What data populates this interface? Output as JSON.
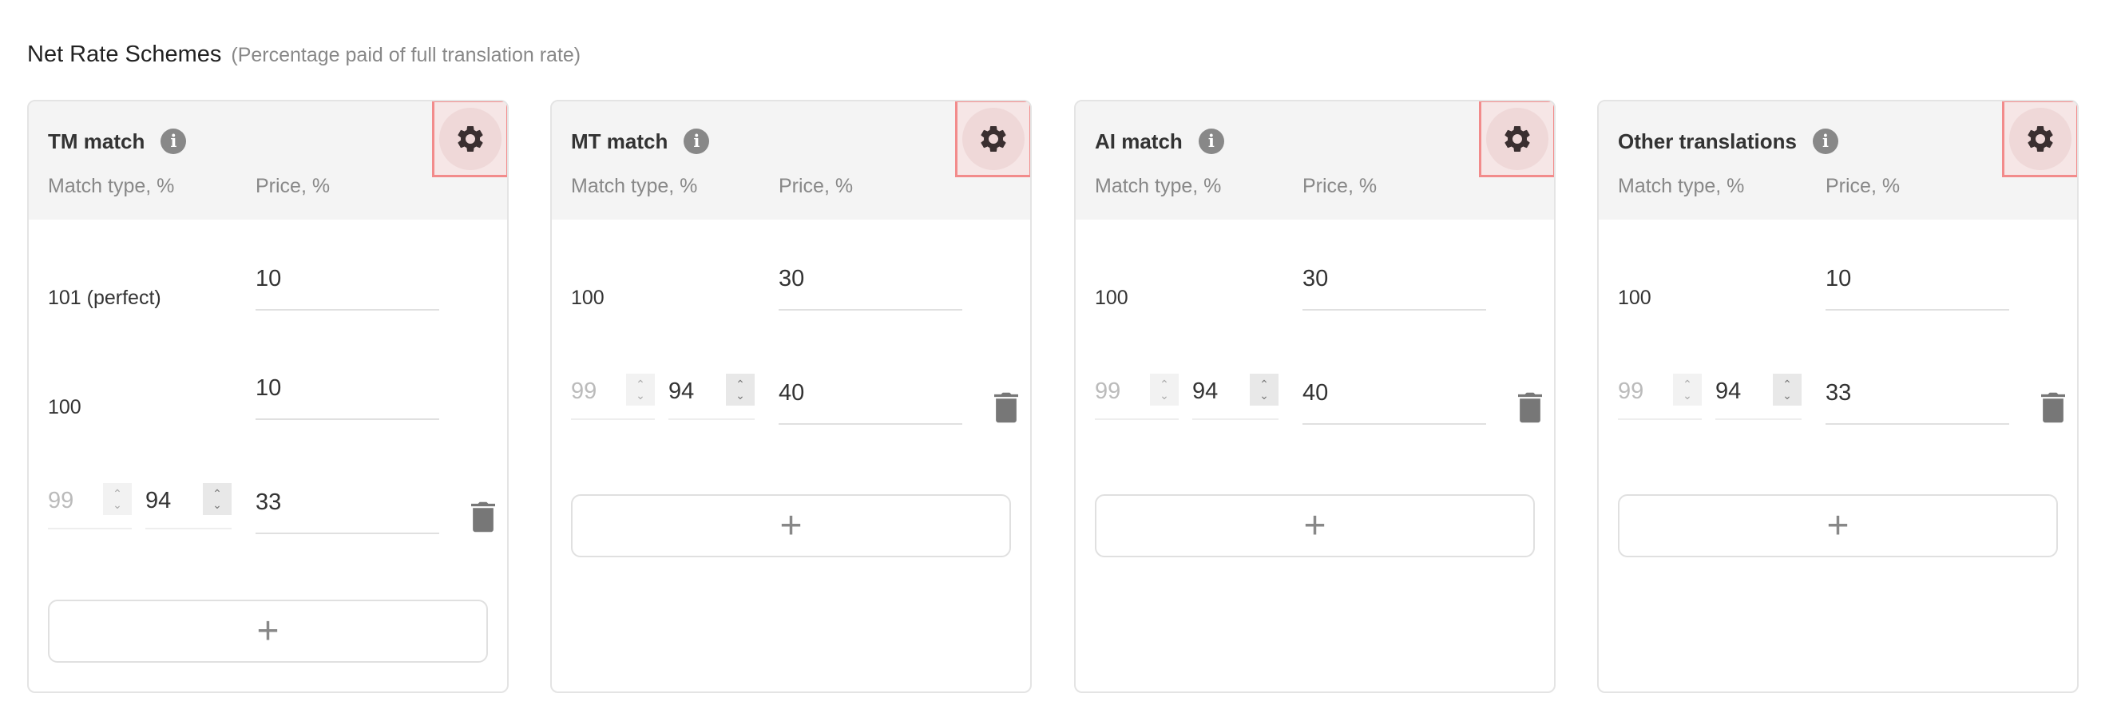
{
  "header": {
    "title": "Net Rate Schemes",
    "subtitle": "(Percentage paid of full translation rate)"
  },
  "columns": {
    "match_type": "Match type, %",
    "price": "Price, %"
  },
  "accent_highlight": "#f28b8b",
  "cards": [
    {
      "title": "TM match",
      "fixed_rows": [
        {
          "match": "101 (perfect)",
          "price": "10"
        },
        {
          "match": "100",
          "price": "10"
        }
      ],
      "range_row": {
        "from": "99",
        "to": "94",
        "price": "33"
      },
      "add_label": "+"
    },
    {
      "title": "MT match",
      "fixed_rows": [
        {
          "match": "100",
          "price": "30"
        }
      ],
      "range_row": {
        "from": "99",
        "to": "94",
        "price": "40"
      },
      "add_label": "+"
    },
    {
      "title": "AI match",
      "fixed_rows": [
        {
          "match": "100",
          "price": "30"
        }
      ],
      "range_row": {
        "from": "99",
        "to": "94",
        "price": "40"
      },
      "add_label": "+"
    },
    {
      "title": "Other translations",
      "fixed_rows": [
        {
          "match": "100",
          "price": "10"
        }
      ],
      "range_row": {
        "from": "99",
        "to": "94",
        "price": "33"
      },
      "add_label": "+"
    }
  ]
}
